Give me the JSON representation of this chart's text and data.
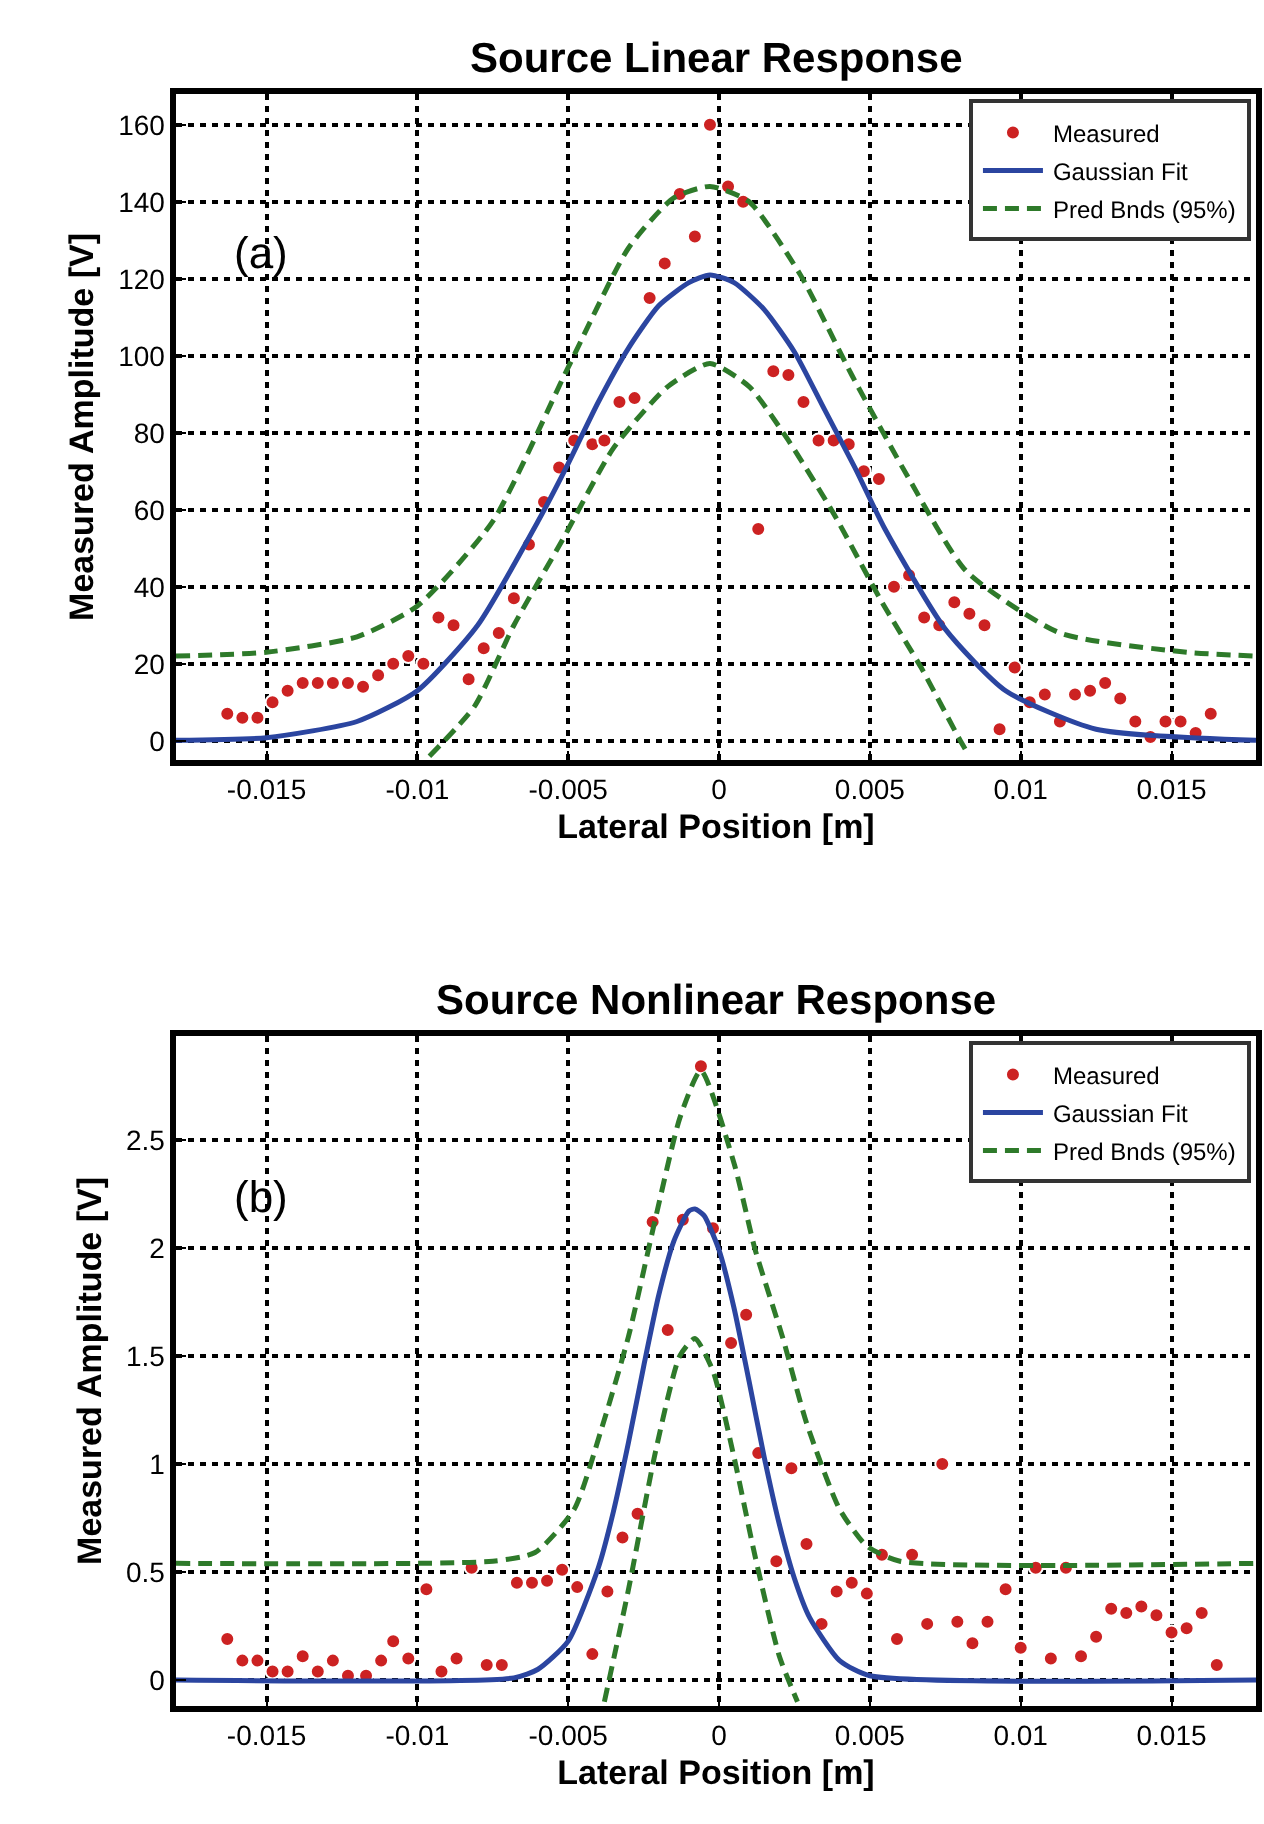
{
  "chart_data": [
    {
      "type": "scatter",
      "title": "Source Linear Response",
      "xlabel": "Lateral Position [m]",
      "ylabel": "Measured Amplitude [V]",
      "annotations": [
        "(a)"
      ],
      "xlim": [
        -0.018,
        0.0178
      ],
      "ylim": [
        -5,
        168
      ],
      "xticks": [
        -0.015,
        -0.01,
        -0.005,
        0,
        0.005,
        0.01,
        0.015
      ],
      "yticks": [
        0,
        20,
        40,
        60,
        80,
        100,
        120,
        140,
        160
      ],
      "grid": true,
      "legend": "top right",
      "series": [
        {
          "name": "Measured",
          "marker": "circle",
          "color": "#cc2222",
          "x": [
            -0.0163,
            -0.0158,
            -0.0153,
            -0.0148,
            -0.0143,
            -0.0138,
            -0.0133,
            -0.0128,
            -0.0123,
            -0.0118,
            -0.0113,
            -0.0108,
            -0.0103,
            -0.0098,
            -0.0093,
            -0.0088,
            -0.0083,
            -0.0078,
            -0.0073,
            -0.0068,
            -0.0063,
            -0.0058,
            -0.0053,
            -0.0048,
            -0.0042,
            -0.0038,
            -0.0033,
            -0.0028,
            -0.0023,
            -0.0018,
            -0.0013,
            -0.0008,
            -0.0003,
            0.0003,
            0.0008,
            0.0013,
            0.0018,
            0.0023,
            0.0028,
            0.0033,
            0.0038,
            0.0043,
            0.0048,
            0.0053,
            0.0058,
            0.0063,
            0.0068,
            0.0073,
            0.0078,
            0.0083,
            0.0088,
            0.0093,
            0.0098,
            0.0103,
            0.0108,
            0.0113,
            0.0118,
            0.0123,
            0.0128,
            0.0133,
            0.0138,
            0.0143,
            0.0148,
            0.0153,
            0.0158,
            0.0163
          ],
          "values": [
            7,
            6,
            6,
            10,
            13,
            15,
            15,
            15,
            15,
            14,
            17,
            20,
            22,
            20,
            32,
            30,
            16,
            24,
            28,
            37,
            51,
            62,
            71,
            78,
            77,
            78,
            88,
            89,
            115,
            124,
            142,
            131,
            160,
            144,
            140,
            55,
            96,
            95,
            88,
            78,
            78,
            77,
            70,
            68,
            40,
            43,
            32,
            30,
            36,
            33,
            30,
            3,
            19,
            10,
            12,
            5,
            12,
            13,
            15,
            11,
            5,
            1,
            5,
            5,
            2,
            7
          ]
        },
        {
          "name": "Gaussian Fit",
          "type": "line",
          "line_style": "solid",
          "color": "#2b45a0",
          "x": [
            -0.018,
            -0.015,
            -0.012,
            -0.01,
            -0.008,
            -0.006,
            -0.005,
            -0.004,
            -0.003,
            -0.002,
            -0.001,
            -0.0003,
            0.0005,
            0.0015,
            0.0025,
            0.0035,
            0.0045,
            0.0055,
            0.0075,
            0.0095,
            0.0125,
            0.0178
          ],
          "values": [
            0.1,
            0.8,
            5,
            13,
            30,
            57,
            72,
            88,
            102,
            113,
            119,
            121,
            119,
            112,
            101,
            86,
            71,
            55,
            29,
            13,
            3,
            0.1
          ]
        },
        {
          "name": "Pred Bnds (95%)",
          "type": "line",
          "line_style": "dashed",
          "color": "#2e7a2a",
          "x": [
            -0.018,
            -0.015,
            -0.012,
            -0.01,
            -0.0075,
            -0.005,
            -0.003,
            -0.0015,
            -0.0003,
            0.001,
            0.0027,
            0.0044,
            0.0063,
            0.0082,
            0.0113,
            0.0155,
            0.0178
          ],
          "values": [
            22,
            23,
            27,
            35,
            57,
            97,
            128,
            141,
            144,
            140,
            121,
            95,
            68,
            44,
            28,
            23,
            22
          ]
        },
        {
          "type": "line",
          "line_style": "dashed",
          "color": "#2e7a2a",
          "x": [
            -0.0096,
            -0.0081,
            -0.0068,
            -0.0052,
            -0.0035,
            -0.0017,
            -0.0003,
            0.001,
            0.0023,
            0.0038,
            0.0054,
            0.0067,
            0.008,
            0.0083
          ],
          "values": [
            -4,
            9,
            30,
            52,
            76,
            92,
            98,
            92,
            78,
            59,
            36,
            19,
            0,
            -4
          ]
        }
      ]
    },
    {
      "type": "scatter",
      "title": "Source Nonlinear Response",
      "xlabel": "Lateral Position [m]",
      "ylabel": "Measured Amplitude [V]",
      "annotations": [
        "(b)"
      ],
      "xlim": [
        -0.018,
        0.0178
      ],
      "ylim": [
        -0.12,
        2.98
      ],
      "xticks": [
        -0.015,
        -0.01,
        -0.005,
        0,
        0.005,
        0.01,
        0.015
      ],
      "yticks": [
        0,
        0.5,
        1,
        1.5,
        2,
        2.5
      ],
      "grid": true,
      "legend": "top right",
      "series": [
        {
          "name": "Measured",
          "marker": "circle",
          "color": "#cc2222",
          "x": [
            -0.0163,
            -0.0158,
            -0.0153,
            -0.0148,
            -0.0143,
            -0.0138,
            -0.0133,
            -0.0128,
            -0.0123,
            -0.0117,
            -0.0112,
            -0.0108,
            -0.0103,
            -0.0097,
            -0.0092,
            -0.0087,
            -0.0082,
            -0.0077,
            -0.0072,
            -0.0067,
            -0.0062,
            -0.0057,
            -0.0052,
            -0.0047,
            -0.0042,
            -0.0037,
            -0.0032,
            -0.0027,
            -0.0022,
            -0.0017,
            -0.0012,
            -0.0006,
            -0.0002,
            0.0004,
            0.0009,
            0.0013,
            0.0019,
            0.0024,
            0.0029,
            0.0034,
            0.0039,
            0.0044,
            0.0049,
            0.0054,
            0.0059,
            0.0064,
            0.0069,
            0.0074,
            0.0079,
            0.0084,
            0.0089,
            0.0095,
            0.01,
            0.0105,
            0.011,
            0.0115,
            0.012,
            0.0125,
            0.013,
            0.0135,
            0.014,
            0.0145,
            0.015,
            0.0155,
            0.016,
            0.0165
          ],
          "values": [
            0.19,
            0.09,
            0.09,
            0.04,
            0.04,
            0.11,
            0.04,
            0.09,
            0.02,
            0.02,
            0.09,
            0.18,
            0.1,
            0.42,
            0.04,
            0.1,
            0.52,
            0.07,
            0.07,
            0.45,
            0.45,
            0.46,
            0.51,
            0.43,
            0.12,
            0.41,
            0.66,
            0.77,
            2.12,
            1.62,
            2.13,
            2.84,
            2.09,
            1.56,
            1.69,
            1.05,
            0.55,
            0.98,
            0.63,
            0.26,
            0.41,
            0.45,
            0.4,
            0.58,
            0.19,
            0.58,
            0.26,
            1.0,
            0.27,
            0.17,
            0.27,
            0.42,
            0.15,
            0.52,
            0.1,
            0.52,
            0.11,
            0.2,
            0.33,
            0.31,
            0.34,
            0.3,
            0.22,
            0.24,
            0.31,
            0.07
          ]
        },
        {
          "name": "Gaussian Fit",
          "type": "line",
          "line_style": "solid",
          "color": "#2b45a0",
          "x": [
            -0.018,
            -0.0068,
            -0.006,
            -0.005,
            -0.004,
            -0.0035,
            -0.003,
            -0.0025,
            -0.002,
            -0.0015,
            -0.001,
            -0.0008,
            -0.0005,
            0,
            0.0005,
            0.001,
            0.0015,
            0.002,
            0.0025,
            0.003,
            0.004,
            0.005,
            0.0178
          ],
          "values": [
            0,
            0.01,
            0.05,
            0.18,
            0.52,
            0.78,
            1.1,
            1.45,
            1.78,
            2.03,
            2.17,
            2.18,
            2.15,
            1.99,
            1.72,
            1.38,
            1.03,
            0.72,
            0.47,
            0.29,
            0.09,
            0.02,
            0
          ]
        },
        {
          "name": "Pred Bnds (95%)",
          "type": "line",
          "line_style": "dashed",
          "color": "#2e7a2a",
          "x": [
            -0.018,
            -0.0075,
            -0.0061,
            -0.0048,
            -0.0039,
            -0.003,
            -0.0021,
            -0.0013,
            -0.0006,
            0.0005,
            0.0012,
            0.0021,
            0.0029,
            0.004,
            0.0049,
            0.006,
            0.0178
          ],
          "values": [
            0.54,
            0.55,
            0.59,
            0.79,
            1.16,
            1.59,
            2.14,
            2.6,
            2.82,
            2.39,
            1.99,
            1.59,
            1.19,
            0.79,
            0.62,
            0.55,
            0.54
          ]
        },
        {
          "type": "line",
          "line_style": "dashed",
          "color": "#2e7a2a",
          "x": [
            -0.0038,
            -0.003,
            -0.0021,
            -0.0013,
            -0.0008,
            -0.0002,
            0.0005,
            0.0012,
            0.002,
            0.0026
          ],
          "values": [
            -0.1,
            0.42,
            1.06,
            1.5,
            1.58,
            1.43,
            1.03,
            0.57,
            0.11,
            -0.1
          ]
        }
      ]
    }
  ]
}
